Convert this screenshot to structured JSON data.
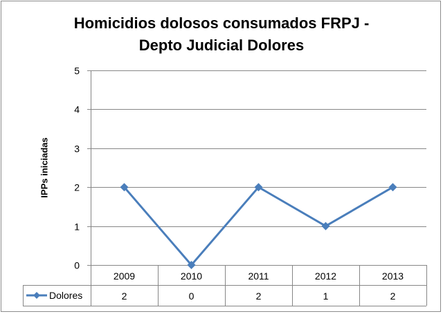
{
  "chart_data": {
    "type": "line",
    "title": [
      "Homicidios dolosos consumados FRPJ -",
      "Depto Judicial Dolores"
    ],
    "ylabel": "IPPs iniciadas",
    "xlabel": "",
    "categories": [
      "2009",
      "2010",
      "2011",
      "2012",
      "2013"
    ],
    "yticks": [
      "0",
      "1",
      "2",
      "3",
      "4",
      "5"
    ],
    "ylim": [
      0,
      5
    ],
    "grid": true,
    "legend": "data-table-left",
    "series": [
      {
        "name": "Dolores",
        "values": [
          2,
          0,
          2,
          1,
          2
        ],
        "value_labels": [
          "2",
          "0",
          "2",
          "1",
          "2"
        ],
        "color": "#4a7ebb"
      }
    ],
    "colors": {
      "grid": "#868686",
      "axis": "#868686",
      "series": "#4a7ebb"
    }
  }
}
